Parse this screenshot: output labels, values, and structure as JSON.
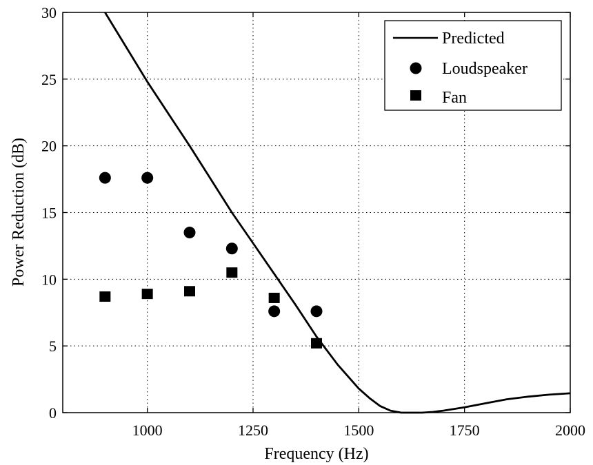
{
  "chart_data": {
    "type": "line",
    "xlabel": "Frequency (Hz)",
    "ylabel": "Power Reduction (dB)",
    "xlim": [
      800,
      2000
    ],
    "ylim": [
      0,
      30
    ],
    "x_ticks": [
      1000,
      1250,
      1500,
      1750,
      2000
    ],
    "y_ticks": [
      0,
      5,
      10,
      15,
      20,
      25,
      30
    ],
    "grid": true,
    "grid_style": "dotted",
    "legend_position": "top-right",
    "series": [
      {
        "name": "Predicted",
        "kind": "line",
        "color": "#000000",
        "x": [
          900,
          950,
          1000,
          1050,
          1100,
          1150,
          1200,
          1250,
          1300,
          1350,
          1400,
          1450,
          1500,
          1525,
          1550,
          1575,
          1600,
          1625,
          1650,
          1675,
          1700,
          1750,
          1800,
          1850,
          1900,
          1950,
          2000
        ],
        "y": [
          30.0,
          27.4,
          24.8,
          22.4,
          20.0,
          17.5,
          15.0,
          12.7,
          10.4,
          8.1,
          5.7,
          3.6,
          1.8,
          1.1,
          0.5,
          0.15,
          0.0,
          0.0,
          0.0,
          0.05,
          0.15,
          0.4,
          0.7,
          1.0,
          1.2,
          1.35,
          1.45
        ]
      },
      {
        "name": "Loudspeaker",
        "kind": "scatter",
        "marker": "circle",
        "color": "#000000",
        "x": [
          900,
          1000,
          1100,
          1200,
          1300,
          1400
        ],
        "y": [
          17.6,
          17.6,
          13.5,
          12.3,
          7.6,
          7.6
        ]
      },
      {
        "name": "Fan",
        "kind": "scatter",
        "marker": "square",
        "color": "#000000",
        "x": [
          900,
          1000,
          1100,
          1200,
          1300,
          1400
        ],
        "y": [
          8.7,
          8.9,
          9.1,
          10.5,
          8.6,
          5.2
        ]
      }
    ]
  }
}
